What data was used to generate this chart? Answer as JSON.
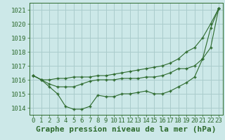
{
  "background_color": "#cce8e8",
  "grid_color": "#aacccc",
  "line_color": "#2d6a2d",
  "marker_color": "#2d6a2d",
  "xlabel": "Graphe pression niveau de la mer (hPa)",
  "xlabel_fontsize": 8,
  "tick_fontsize": 6.5,
  "ylim": [
    1013.5,
    1021.5
  ],
  "xlim": [
    -0.5,
    23.5
  ],
  "yticks": [
    1014,
    1015,
    1016,
    1017,
    1018,
    1019,
    1020,
    1021
  ],
  "xticks": [
    0,
    1,
    2,
    3,
    4,
    5,
    6,
    7,
    8,
    9,
    10,
    11,
    12,
    13,
    14,
    15,
    16,
    17,
    18,
    19,
    20,
    21,
    22,
    23
  ],
  "series": [
    [
      1016.3,
      1016.0,
      1015.5,
      1015.0,
      1014.1,
      1013.9,
      1013.9,
      1014.1,
      1014.9,
      1014.8,
      1014.8,
      1015.0,
      1015.0,
      1015.1,
      1015.2,
      1015.0,
      1015.0,
      1015.2,
      1015.5,
      1015.8,
      1016.2,
      1017.5,
      1018.3,
      1021.1
    ],
    [
      1016.3,
      1016.0,
      1015.7,
      1015.5,
      1015.5,
      1015.5,
      1015.7,
      1015.9,
      1016.0,
      1016.0,
      1016.0,
      1016.1,
      1016.1,
      1016.1,
      1016.2,
      1016.2,
      1016.3,
      1016.5,
      1016.8,
      1016.8,
      1017.0,
      1017.5,
      1019.7,
      1021.1
    ],
    [
      1016.3,
      1016.0,
      1016.0,
      1016.1,
      1016.1,
      1016.2,
      1016.2,
      1016.2,
      1016.3,
      1016.3,
      1016.4,
      1016.5,
      1016.6,
      1016.7,
      1016.8,
      1016.9,
      1017.0,
      1017.2,
      1017.5,
      1018.0,
      1018.3,
      1019.0,
      1020.0,
      1021.1
    ]
  ]
}
